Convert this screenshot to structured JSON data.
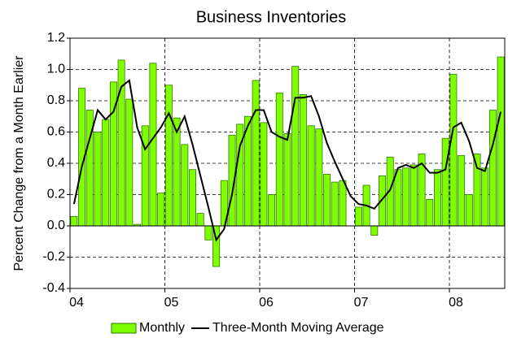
{
  "chart_data": {
    "type": "bar",
    "title": "Business Inventories",
    "y_label": "Percent Change from a  Month Earlier",
    "xlim": [
      0,
      55
    ],
    "xticks": [
      {
        "value": 0,
        "label": "04"
      },
      {
        "value": 12,
        "label": "05"
      },
      {
        "value": 24,
        "label": "06"
      },
      {
        "value": 36,
        "label": "07"
      },
      {
        "value": 48,
        "label": "08"
      }
    ],
    "ylim": [
      -0.4,
      1.2
    ],
    "yticks": [
      -0.4,
      -0.2,
      {
        "value": 0,
        "label": "0.0"
      },
      0.2,
      0.4,
      0.6,
      0.8,
      {
        "value": 1,
        "label": "1.0"
      },
      1.2
    ],
    "grid": true,
    "x": [
      0.5,
      1.5,
      2.5,
      3.5,
      4.5,
      5.5,
      6.5,
      7.5,
      8.5,
      9.5,
      10.5,
      11.5,
      12.5,
      13.5,
      14.5,
      15.5,
      16.5,
      17.5,
      18.5,
      19.5,
      20.5,
      21.5,
      22.5,
      23.5,
      24.5,
      25.5,
      26.5,
      27.5,
      28.5,
      29.5,
      30.5,
      31.5,
      32.5,
      33.5,
      34.5,
      35.5,
      36.5,
      37.5,
      38.5,
      39.5,
      40.5,
      41.5,
      42.5,
      43.5,
      44.5,
      45.5,
      46.5,
      47.5,
      48.5,
      49.5,
      50.5,
      51.5,
      52.5,
      53.5,
      54.5
    ],
    "series": [
      {
        "name": "Monthly",
        "type": "bar",
        "color": "#80ff00",
        "edge_color": "#2f7a00",
        "values": [
          0.06,
          0.88,
          0.74,
          0.6,
          0.68,
          0.92,
          1.06,
          0.81,
          0.01,
          0.64,
          1.04,
          0.21,
          0.9,
          0.69,
          0.52,
          0.36,
          0.08,
          -0.09,
          -0.26,
          0.29,
          0.58,
          0.65,
          0.7,
          0.93,
          0.66,
          0.2,
          0.85,
          0.59,
          1.02,
          0.84,
          0.64,
          0.62,
          0.33,
          0.28,
          0.29,
          0.0,
          0.12,
          0.26,
          -0.06,
          0.32,
          0.44,
          0.36,
          0.37,
          0.39,
          0.46,
          0.17,
          0.36,
          0.56,
          0.97,
          0.45,
          0.2,
          0.46,
          0.37,
          0.74,
          1.08
        ]
      },
      {
        "name": "Three-Month Moving Average",
        "type": "line",
        "color": "#000000",
        "values": [
          0.14,
          0.38,
          0.56,
          0.74,
          0.68,
          0.73,
          0.89,
          0.93,
          0.63,
          0.49,
          0.56,
          0.63,
          0.72,
          0.6,
          0.7,
          0.52,
          0.32,
          0.12,
          -0.09,
          -0.02,
          0.2,
          0.51,
          0.64,
          0.74,
          0.74,
          0.6,
          0.57,
          0.55,
          0.82,
          0.82,
          0.83,
          0.7,
          0.53,
          0.41,
          0.3,
          0.19,
          0.14,
          0.13,
          0.11,
          0.17,
          0.23,
          0.37,
          0.39,
          0.37,
          0.4,
          0.34,
          0.34,
          0.36,
          0.63,
          0.66,
          0.54,
          0.37,
          0.35,
          0.52,
          0.73
        ]
      }
    ]
  }
}
